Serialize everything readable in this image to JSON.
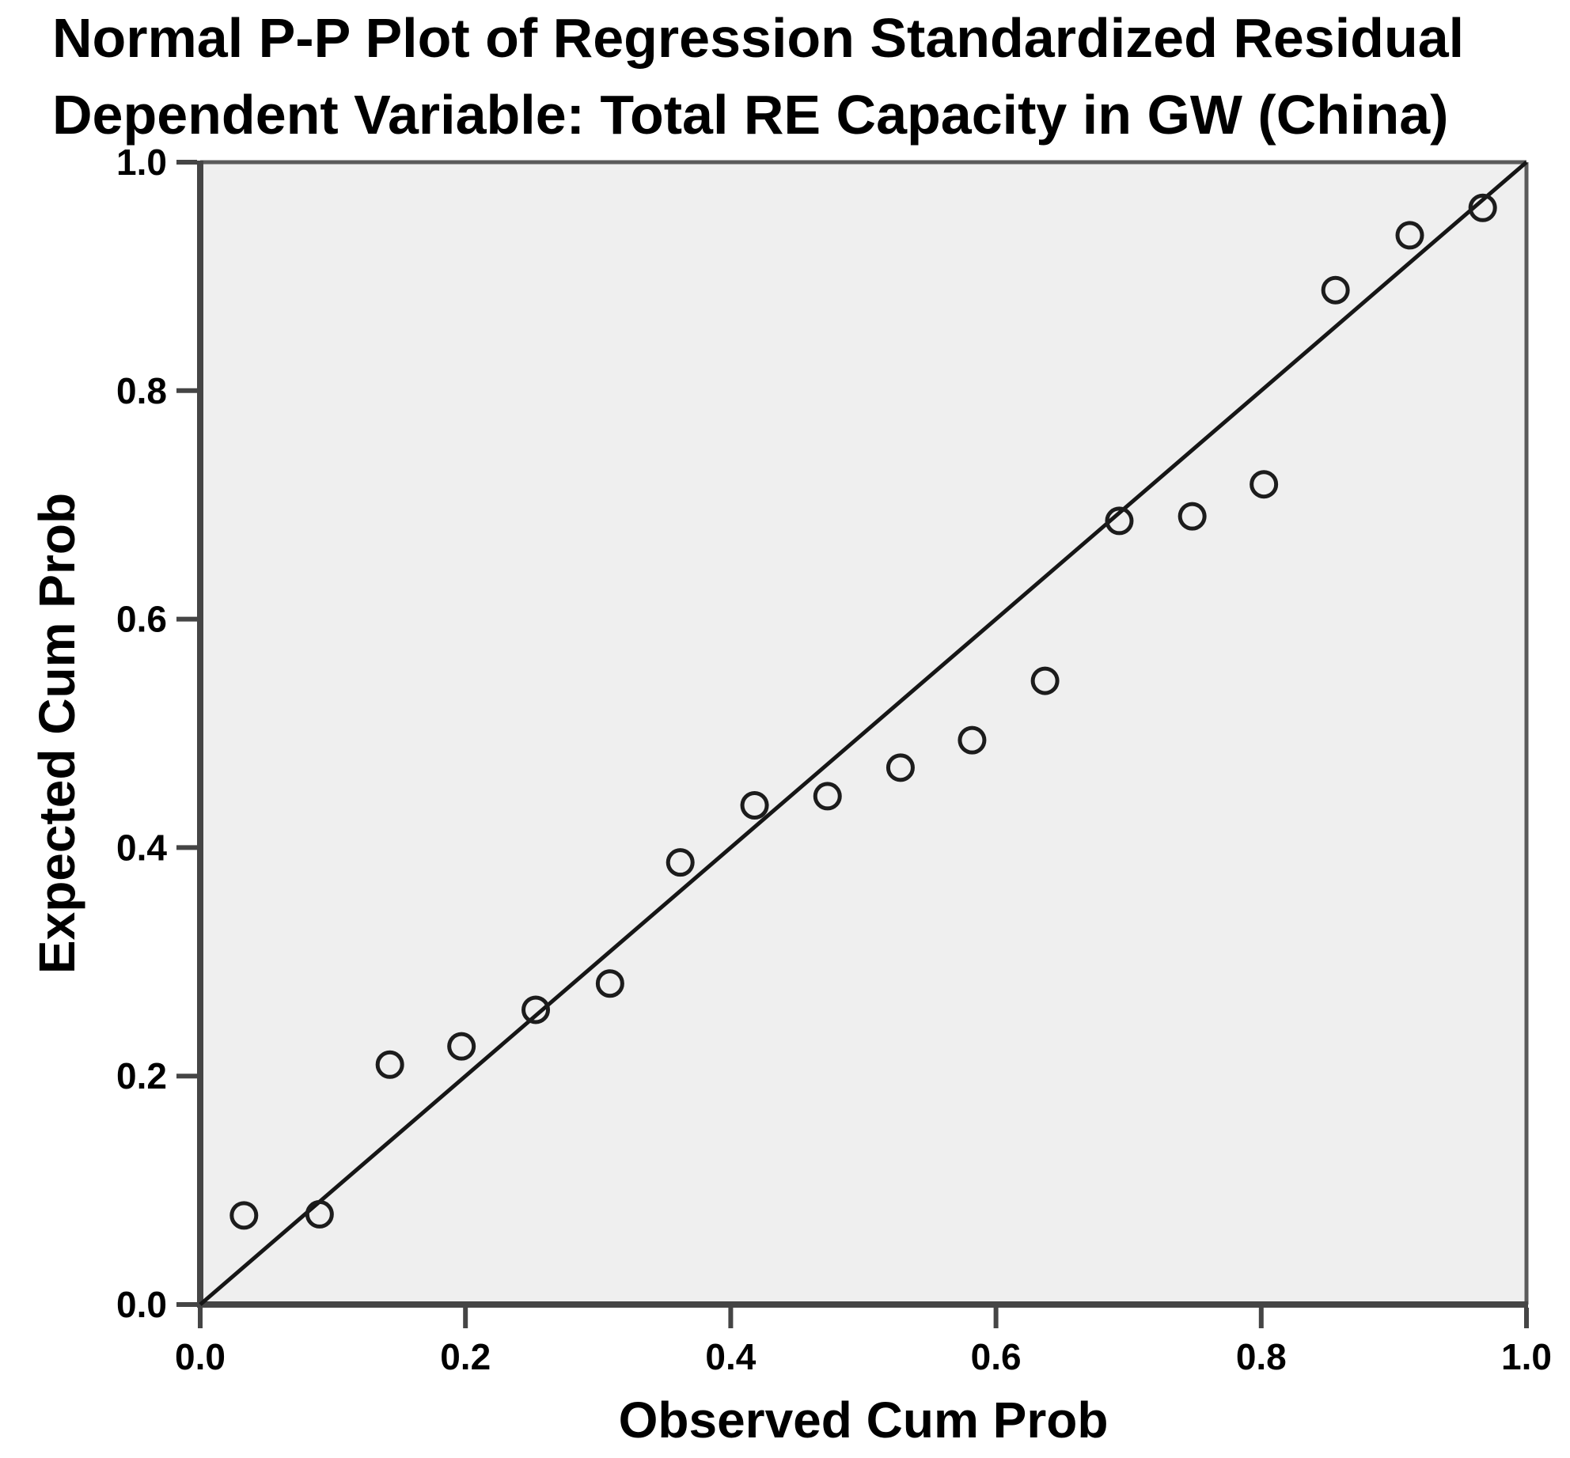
{
  "chart_data": {
    "type": "scatter",
    "title": "Normal P-P Plot of Regression Standardized Residual",
    "subtitle": "Dependent Variable: Total RE Capacity in GW (China)",
    "xlabel": "Observed Cum Prob",
    "ylabel": "Expected Cum Prob",
    "xlim": [
      0.0,
      1.0
    ],
    "ylim": [
      0.0,
      1.0
    ],
    "x_ticks": [
      {
        "value": 0.0,
        "label": "0.0"
      },
      {
        "value": 0.2,
        "label": "0.2"
      },
      {
        "value": 0.4,
        "label": "0.4"
      },
      {
        "value": 0.6,
        "label": "0.6"
      },
      {
        "value": 0.8,
        "label": "0.8"
      },
      {
        "value": 1.0,
        "label": "1.0"
      }
    ],
    "y_ticks": [
      {
        "value": 0.0,
        "label": "0.0"
      },
      {
        "value": 0.2,
        "label": "0.2"
      },
      {
        "value": 0.4,
        "label": "0.4"
      },
      {
        "value": 0.6,
        "label": "0.6"
      },
      {
        "value": 0.8,
        "label": "0.8"
      },
      {
        "value": 1.0,
        "label": "1.0"
      }
    ],
    "grid": false,
    "legend": "none",
    "reference_line": {
      "from": [
        0.0,
        0.0
      ],
      "to": [
        1.0,
        1.0
      ]
    },
    "series": [
      {
        "name": "Regression Standardized Residual",
        "marker": "open-circle",
        "points": [
          {
            "x": 0.033,
            "y": 0.078
          },
          {
            "x": 0.09,
            "y": 0.079
          },
          {
            "x": 0.143,
            "y": 0.21
          },
          {
            "x": 0.197,
            "y": 0.226
          },
          {
            "x": 0.253,
            "y": 0.258
          },
          {
            "x": 0.309,
            "y": 0.281
          },
          {
            "x": 0.362,
            "y": 0.387
          },
          {
            "x": 0.418,
            "y": 0.437
          },
          {
            "x": 0.473,
            "y": 0.445
          },
          {
            "x": 0.528,
            "y": 0.47
          },
          {
            "x": 0.582,
            "y": 0.494
          },
          {
            "x": 0.637,
            "y": 0.546
          },
          {
            "x": 0.693,
            "y": 0.686
          },
          {
            "x": 0.748,
            "y": 0.69
          },
          {
            "x": 0.802,
            "y": 0.718
          },
          {
            "x": 0.856,
            "y": 0.888
          },
          {
            "x": 0.912,
            "y": 0.936
          },
          {
            "x": 0.967,
            "y": 0.96
          }
        ]
      }
    ],
    "colors": {
      "page_background": "#ffffff",
      "plot_background": "#efefef",
      "axis_line": "#454545",
      "frame_line": "#5a5a5a",
      "tick": "#454545",
      "diagonal_line": "#161616",
      "marker_stroke": "#1c1c1c",
      "text": "#000000"
    }
  }
}
